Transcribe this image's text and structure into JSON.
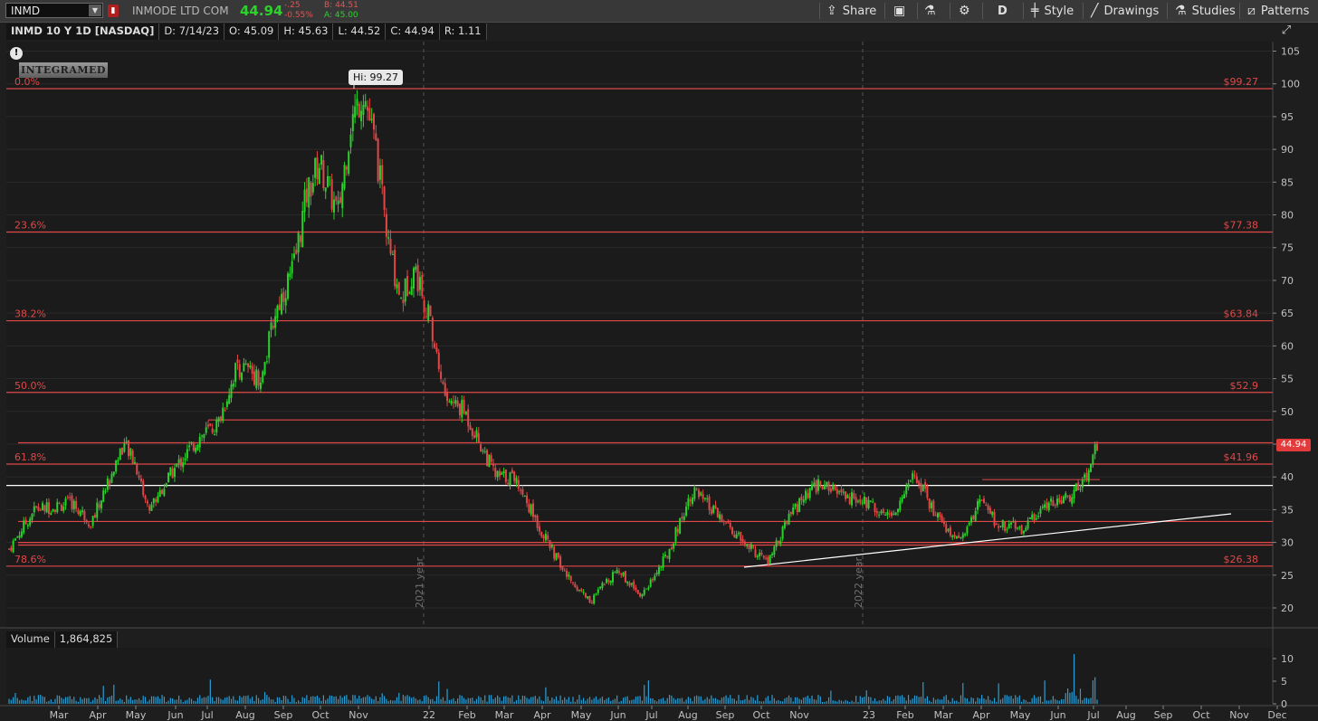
{
  "toolbar": {
    "symbol": "INMD",
    "company": "INMODE LTD COM",
    "last": "44.94",
    "change": "-.25",
    "change_pct": "-0.55%",
    "bid": "B: 44.51",
    "ask": "A: 45.00",
    "share_label": "Share",
    "aggregation": "D",
    "style_label": "Style",
    "drawings_label": "Drawings",
    "studies_label": "Studies",
    "patterns_label": "Patterns"
  },
  "info": {
    "title": "INMD 10 Y 1D [NASDAQ]",
    "date": "D: 7/14/23",
    "open": "O: 45.09",
    "high": "H: 45.63",
    "low": "L: 44.52",
    "close": "C: 44.94",
    "range": "R: 1.11"
  },
  "volume": {
    "label": "Volume",
    "value": "1,864,825"
  },
  "logo_text": "INTEGRAMED",
  "colors": {
    "up": "#2bd12b",
    "down": "#e04848",
    "fib": "#e04848",
    "background": "#1e1e1e",
    "volume": "#2a9fd6"
  },
  "chart_data": {
    "type": "candlestick",
    "price_axis": {
      "ticks": [
        20,
        25,
        30,
        35,
        40,
        45,
        50,
        55,
        60,
        65,
        70,
        75,
        80,
        85,
        90,
        95,
        100,
        105
      ],
      "range": [
        18,
        106
      ]
    },
    "volume_axis": {
      "ticks": [
        0,
        5,
        10
      ],
      "range": [
        0,
        12
      ]
    },
    "x_labels": [
      "Mar",
      "Apr",
      "May",
      "Jun",
      "Jul",
      "Aug",
      "Sep",
      "Oct",
      "Nov",
      "22",
      "Feb",
      "Mar",
      "Apr",
      "May",
      "Jun",
      "Jul",
      "Aug",
      "Sep",
      "Oct",
      "Nov",
      "23",
      "Feb",
      "Mar",
      "Apr",
      "May",
      "Jun",
      "Jul",
      "Aug",
      "Sep",
      "Oct",
      "Nov",
      "Dec"
    ],
    "year_separators": [
      "2021 year",
      "2022 year"
    ],
    "high_marker": {
      "label": "Hi: 99.27",
      "value": 99.27
    },
    "last_price": 44.94,
    "fib_levels": [
      {
        "pct": "0.0%",
        "price_label": "$99.27",
        "value": 99.27
      },
      {
        "pct": "23.6%",
        "price_label": "$77.38",
        "value": 77.38
      },
      {
        "pct": "38.2%",
        "price_label": "$63.84",
        "value": 63.84
      },
      {
        "pct": "50.0%",
        "price_label": "$52.9",
        "value": 52.9
      },
      {
        "pct": "61.8%",
        "price_label": "$41.96",
        "value": 41.96
      },
      {
        "pct": "78.6%",
        "price_label": "$26.38",
        "value": 26.38
      }
    ],
    "extra_horizontal_lines": [
      48.7,
      45.2,
      33.2,
      30.0,
      29.6
    ],
    "support_line": {
      "value": 38.7
    },
    "price_path": [
      [
        0,
        29
      ],
      [
        0.02,
        35
      ],
      [
        0.05,
        36
      ],
      [
        0.065,
        33
      ],
      [
        0.08,
        40
      ],
      [
        0.09,
        45
      ],
      [
        0.1,
        42
      ],
      [
        0.11,
        35
      ],
      [
        0.13,
        41
      ],
      [
        0.15,
        46
      ],
      [
        0.165,
        48
      ],
      [
        0.18,
        57
      ],
      [
        0.2,
        55
      ],
      [
        0.21,
        65
      ],
      [
        0.225,
        72
      ],
      [
        0.235,
        83
      ],
      [
        0.245,
        88
      ],
      [
        0.26,
        80
      ],
      [
        0.27,
        94
      ],
      [
        0.28,
        99
      ],
      [
        0.29,
        90
      ],
      [
        0.3,
        75
      ],
      [
        0.31,
        67
      ],
      [
        0.32,
        72
      ],
      [
        0.33,
        66
      ],
      [
        0.345,
        52
      ],
      [
        0.36,
        50
      ],
      [
        0.37,
        46
      ],
      [
        0.385,
        40
      ],
      [
        0.4,
        40
      ],
      [
        0.42,
        32
      ],
      [
        0.44,
        25
      ],
      [
        0.46,
        21
      ],
      [
        0.48,
        26
      ],
      [
        0.5,
        22
      ],
      [
        0.52,
        28
      ],
      [
        0.54,
        38
      ],
      [
        0.56,
        34
      ],
      [
        0.58,
        30
      ],
      [
        0.6,
        27
      ],
      [
        0.62,
        35
      ],
      [
        0.64,
        39
      ],
      [
        0.66,
        37
      ],
      [
        0.68,
        36
      ],
      [
        0.7,
        34
      ],
      [
        0.715,
        41
      ],
      [
        0.73,
        35
      ],
      [
        0.75,
        30
      ],
      [
        0.77,
        37
      ],
      [
        0.78,
        33
      ],
      [
        0.8,
        32
      ],
      [
        0.82,
        36
      ],
      [
        0.84,
        37
      ],
      [
        0.855,
        41
      ],
      [
        0.86,
        45
      ]
    ]
  }
}
